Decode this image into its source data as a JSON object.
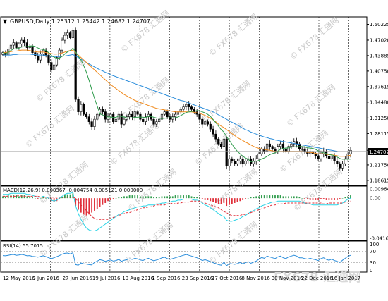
{
  "header": {
    "menu_arrow": "▼",
    "title": "GBPUSD,Daily  1.25312 1.25442 1.24682 1.24707"
  },
  "indicators": {
    "macd_label": "MACD(12,26,9) 0.000367 -0.004754 0.005121 0.000000",
    "rsi_label": "RSI(14) 55.7015"
  },
  "watermark": "FX678 汇通网",
  "chart_data": [
    {
      "type": "candlestick",
      "title": "GBPUSD,Daily",
      "open": 1.25312,
      "high": 1.25442,
      "low": 1.24682,
      "close": 1.24707,
      "y_ticks": [
        "1.50225",
        "1.47020",
        "1.43885",
        "1.40750",
        "1.37615",
        "1.34480",
        "1.31250",
        "1.28115",
        "1.24707",
        "1.21750",
        "1.18615"
      ],
      "current_price_label": "1.24707",
      "ylim": [
        1.186,
        1.503
      ],
      "x_ticks": [
        "12 May 2016",
        "3 Jun 2016",
        "27 Jun 2016",
        "19 Jul 2016",
        "10 Aug 2016",
        "1 Sep 2016",
        "23 Sep 2016",
        "17 Oct 2016",
        "8 Nov 2016",
        "30 Nov 2016",
        "22 Dec 2016",
        "16 Jan 2017"
      ],
      "close_series": [
        1.445,
        1.44,
        1.452,
        1.46,
        1.465,
        1.455,
        1.462,
        1.47,
        1.465,
        1.455,
        1.458,
        1.445,
        1.438,
        1.43,
        1.442,
        1.45,
        1.44,
        1.425,
        1.41,
        1.42,
        1.435,
        1.45,
        1.47,
        1.48,
        1.485,
        1.475,
        1.49,
        1.35,
        1.325,
        1.34,
        1.32,
        1.315,
        1.305,
        1.295,
        1.31,
        1.32,
        1.33,
        1.325,
        1.31,
        1.315,
        1.32,
        1.305,
        1.31,
        1.32,
        1.3,
        1.31,
        1.315,
        1.32,
        1.315,
        1.325,
        1.32,
        1.31,
        1.305,
        1.315,
        1.32,
        1.31,
        1.3,
        1.305,
        1.31,
        1.32,
        1.325,
        1.315,
        1.31,
        1.315,
        1.32,
        1.325,
        1.33,
        1.335,
        1.34,
        1.335,
        1.33,
        1.325,
        1.32,
        1.31,
        1.3,
        1.305,
        1.3,
        1.29,
        1.28,
        1.27,
        1.26,
        1.255,
        1.27,
        1.215,
        1.23,
        1.225,
        1.22,
        1.225,
        1.23,
        1.22,
        1.225,
        1.23,
        1.22,
        1.225,
        1.23,
        1.24,
        1.25,
        1.245,
        1.26,
        1.255,
        1.25,
        1.245,
        1.255,
        1.26,
        1.25,
        1.245,
        1.255,
        1.26,
        1.265,
        1.26,
        1.25,
        1.25,
        1.245,
        1.24,
        1.245,
        1.24,
        1.235,
        1.23,
        1.24,
        1.245,
        1.235,
        1.23,
        1.235,
        1.225,
        1.22,
        1.21,
        1.22,
        1.23,
        1.24,
        1.247
      ],
      "ma_orange": [
        1.445,
        1.445,
        1.446,
        1.447,
        1.448,
        1.448,
        1.449,
        1.45,
        1.45,
        1.45,
        1.449,
        1.448,
        1.447,
        1.446,
        1.446,
        1.446,
        1.445,
        1.444,
        1.443,
        1.442,
        1.442,
        1.443,
        1.444,
        1.446,
        1.448,
        1.449,
        1.45,
        1.445,
        1.44,
        1.435,
        1.43,
        1.425,
        1.42,
        1.415,
        1.41,
        1.405,
        1.4,
        1.395,
        1.39,
        1.385,
        1.38,
        1.376,
        1.372,
        1.368,
        1.364,
        1.36,
        1.357,
        1.354,
        1.351,
        1.348,
        1.346,
        1.344,
        1.342,
        1.34,
        1.338,
        1.336,
        1.334,
        1.332,
        1.331,
        1.33,
        1.329,
        1.328,
        1.327,
        1.326,
        1.325,
        1.325,
        1.325,
        1.325,
        1.325,
        1.325,
        1.325,
        1.324,
        1.323,
        1.322,
        1.32,
        1.318,
        1.315,
        1.312,
        1.309,
        1.305,
        1.3,
        1.296,
        1.293,
        1.289,
        1.285,
        1.281,
        1.277,
        1.273,
        1.27,
        1.267,
        1.264,
        1.261,
        1.258,
        1.255,
        1.253,
        1.251,
        1.25,
        1.249,
        1.248,
        1.247,
        1.246,
        1.245,
        1.245,
        1.245,
        1.245,
        1.245,
        1.245,
        1.245,
        1.245,
        1.245,
        1.245,
        1.245,
        1.244,
        1.243,
        1.243,
        1.242,
        1.241,
        1.24,
        1.24,
        1.24,
        1.239,
        1.238,
        1.238,
        1.237,
        1.236,
        1.235,
        1.235,
        1.235,
        1.236,
        1.237
      ],
      "ma_blue": [
        1.44,
        1.44,
        1.44,
        1.44,
        1.441,
        1.441,
        1.442,
        1.442,
        1.442,
        1.442,
        1.442,
        1.441,
        1.441,
        1.44,
        1.44,
        1.44,
        1.439,
        1.438,
        1.437,
        1.437,
        1.437,
        1.437,
        1.438,
        1.438,
        1.439,
        1.44,
        1.441,
        1.438,
        1.435,
        1.432,
        1.428,
        1.425,
        1.422,
        1.419,
        1.416,
        1.413,
        1.41,
        1.408,
        1.405,
        1.403,
        1.4,
        1.398,
        1.396,
        1.394,
        1.392,
        1.39,
        1.388,
        1.386,
        1.384,
        1.382,
        1.38,
        1.378,
        1.376,
        1.374,
        1.372,
        1.37,
        1.368,
        1.366,
        1.364,
        1.362,
        1.36,
        1.358,
        1.356,
        1.354,
        1.352,
        1.35,
        1.348,
        1.347,
        1.345,
        1.343,
        1.341,
        1.339,
        1.337,
        1.335,
        1.333,
        1.331,
        1.329,
        1.327,
        1.325,
        1.322,
        1.319,
        1.316,
        1.313,
        1.31,
        1.307,
        1.304,
        1.301,
        1.298,
        1.295,
        1.292,
        1.289,
        1.287,
        1.284,
        1.282,
        1.28,
        1.278,
        1.276,
        1.274,
        1.273,
        1.271,
        1.27,
        1.268,
        1.267,
        1.266,
        1.265,
        1.264,
        1.263,
        1.262,
        1.261,
        1.26,
        1.259,
        1.258,
        1.257,
        1.256,
        1.255,
        1.254,
        1.253,
        1.252,
        1.251,
        1.25,
        1.249,
        1.248,
        1.247,
        1.246,
        1.245,
        1.244,
        1.244,
        1.244,
        1.244,
        1.244
      ]
    },
    {
      "type": "bar",
      "title": "MACD(12,26,9)",
      "y_ticks": [
        "0.009641",
        "0.00",
        "-0.041675"
      ],
      "ylim": [
        -0.041675,
        0.009641
      ],
      "histogram": [
        0.002,
        0.002,
        0.003,
        0.003,
        0.003,
        0.003,
        0.002,
        0.003,
        0.003,
        0.002,
        0.002,
        0.001,
        0.0,
        -0.001,
        0.0,
        0.001,
        0.0,
        -0.001,
        -0.003,
        -0.004,
        -0.003,
        -0.001,
        0.001,
        0.003,
        0.004,
        0.004,
        0.005,
        -0.008,
        -0.012,
        -0.015,
        -0.017,
        -0.018,
        -0.017,
        -0.015,
        -0.013,
        -0.011,
        -0.009,
        -0.007,
        -0.005,
        -0.003,
        -0.002,
        -0.001,
        0.0,
        0.001,
        0.001,
        0.002,
        0.002,
        0.003,
        0.003,
        0.003,
        0.003,
        0.002,
        0.002,
        0.002,
        0.002,
        0.002,
        0.001,
        0.001,
        0.001,
        0.002,
        0.002,
        0.002,
        0.002,
        0.002,
        0.003,
        0.003,
        0.003,
        0.003,
        0.003,
        0.003,
        0.002,
        0.001,
        0.001,
        0.0,
        -0.001,
        -0.002,
        -0.002,
        -0.003,
        -0.004,
        -0.005,
        -0.006,
        -0.006,
        -0.005,
        -0.008,
        -0.007,
        -0.006,
        -0.005,
        -0.004,
        -0.003,
        -0.002,
        -0.001,
        0.0,
        0.001,
        0.001,
        0.002,
        0.002,
        0.003,
        0.003,
        0.003,
        0.003,
        0.003,
        0.003,
        0.003,
        0.003,
        0.002,
        0.002,
        0.002,
        0.002,
        0.002,
        0.002,
        0.001,
        0.0,
        -0.001,
        -0.001,
        -0.002,
        -0.002,
        -0.002,
        -0.002,
        -0.001,
        -0.001,
        -0.002,
        -0.002,
        -0.002,
        -0.002,
        -0.002,
        -0.001,
        0.0,
        0.001,
        0.002,
        0.003
      ],
      "macd_line": [
        0.004,
        0.004,
        0.004,
        0.005,
        0.005,
        0.005,
        0.005,
        0.005,
        0.005,
        0.004,
        0.004,
        0.003,
        0.002,
        0.001,
        0.001,
        0.002,
        0.001,
        0.0,
        -0.002,
        -0.003,
        -0.002,
        0.0,
        0.002,
        0.004,
        0.005,
        0.005,
        0.006,
        -0.008,
        -0.016,
        -0.022,
        -0.027,
        -0.031,
        -0.033,
        -0.034,
        -0.034,
        -0.033,
        -0.031,
        -0.029,
        -0.027,
        -0.025,
        -0.023,
        -0.021,
        -0.019,
        -0.017,
        -0.016,
        -0.014,
        -0.013,
        -0.012,
        -0.011,
        -0.01,
        -0.009,
        -0.009,
        -0.008,
        -0.008,
        -0.007,
        -0.007,
        -0.007,
        -0.006,
        -0.006,
        -0.005,
        -0.005,
        -0.004,
        -0.004,
        -0.003,
        -0.003,
        -0.002,
        -0.002,
        -0.001,
        -0.001,
        -0.001,
        -0.001,
        -0.002,
        -0.002,
        -0.003,
        -0.005,
        -0.007,
        -0.008,
        -0.01,
        -0.012,
        -0.014,
        -0.016,
        -0.018,
        -0.019,
        -0.023,
        -0.024,
        -0.024,
        -0.023,
        -0.022,
        -0.021,
        -0.019,
        -0.018,
        -0.016,
        -0.014,
        -0.013,
        -0.011,
        -0.01,
        -0.008,
        -0.007,
        -0.006,
        -0.005,
        -0.004,
        -0.004,
        -0.003,
        -0.003,
        -0.003,
        -0.003,
        -0.003,
        -0.003,
        -0.003,
        -0.003,
        -0.003,
        -0.004,
        -0.005,
        -0.006,
        -0.006,
        -0.007,
        -0.007,
        -0.007,
        -0.007,
        -0.007,
        -0.007,
        -0.007,
        -0.007,
        -0.007,
        -0.007,
        -0.006,
        -0.005,
        -0.003,
        -0.001,
        0.0
      ],
      "signal_line": [
        0.002,
        0.002,
        0.002,
        0.002,
        0.002,
        0.002,
        0.003,
        0.002,
        0.002,
        0.002,
        0.002,
        0.002,
        0.002,
        0.002,
        0.001,
        0.001,
        0.001,
        0.001,
        0.001,
        0.001,
        0.001,
        0.001,
        0.001,
        0.001,
        0.001,
        0.001,
        0.001,
        0.0,
        -0.004,
        -0.007,
        -0.01,
        -0.013,
        -0.016,
        -0.019,
        -0.021,
        -0.022,
        -0.022,
        -0.022,
        -0.022,
        -0.022,
        -0.021,
        -0.02,
        -0.019,
        -0.018,
        -0.017,
        -0.016,
        -0.015,
        -0.015,
        -0.014,
        -0.013,
        -0.012,
        -0.011,
        -0.01,
        -0.01,
        -0.009,
        -0.009,
        -0.008,
        -0.007,
        -0.007,
        -0.007,
        -0.007,
        -0.006,
        -0.006,
        -0.005,
        -0.006,
        -0.005,
        -0.005,
        -0.004,
        -0.004,
        -0.004,
        -0.003,
        -0.003,
        -0.003,
        -0.003,
        -0.004,
        -0.005,
        -0.006,
        -0.007,
        -0.008,
        -0.009,
        -0.01,
        -0.012,
        -0.014,
        -0.015,
        -0.017,
        -0.018,
        -0.018,
        -0.018,
        -0.018,
        -0.017,
        -0.017,
        -0.016,
        -0.015,
        -0.014,
        -0.013,
        -0.012,
        -0.011,
        -0.01,
        -0.009,
        -0.008,
        -0.007,
        -0.007,
        -0.006,
        -0.006,
        -0.006,
        -0.005,
        -0.005,
        -0.005,
        -0.005,
        -0.005,
        -0.005,
        -0.005,
        -0.005,
        -0.005,
        -0.005,
        -0.005,
        -0.005,
        -0.005,
        -0.005,
        -0.006,
        -0.006,
        -0.005,
        -0.005,
        -0.005,
        -0.005,
        -0.005,
        -0.005,
        -0.004,
        -0.004,
        -0.003
      ]
    },
    {
      "type": "line",
      "title": "RSI(14)",
      "y_ticks": [
        "100",
        "70",
        "30",
        "0"
      ],
      "ylim": [
        0,
        100
      ],
      "levels": [
        70,
        30
      ],
      "values": [
        55,
        54,
        56,
        58,
        59,
        56,
        57,
        59,
        57,
        54,
        55,
        52,
        51,
        49,
        52,
        54,
        51,
        47,
        44,
        47,
        51,
        55,
        60,
        63,
        64,
        61,
        65,
        22,
        20,
        28,
        25,
        24,
        22,
        21,
        30,
        35,
        40,
        38,
        34,
        37,
        39,
        35,
        37,
        41,
        34,
        38,
        40,
        43,
        41,
        45,
        43,
        39,
        37,
        42,
        45,
        40,
        36,
        39,
        42,
        47,
        49,
        44,
        41,
        44,
        47,
        50,
        53,
        56,
        59,
        56,
        53,
        50,
        47,
        42,
        37,
        40,
        37,
        33,
        29,
        26,
        22,
        20,
        31,
        18,
        26,
        25,
        23,
        26,
        30,
        25,
        29,
        33,
        27,
        31,
        35,
        42,
        48,
        45,
        53,
        50,
        47,
        44,
        50,
        53,
        47,
        44,
        50,
        53,
        56,
        53,
        47,
        47,
        44,
        42,
        45,
        42,
        40,
        37,
        44,
        47,
        41,
        38,
        42,
        37,
        34,
        30,
        38,
        45,
        52,
        56
      ]
    }
  ]
}
